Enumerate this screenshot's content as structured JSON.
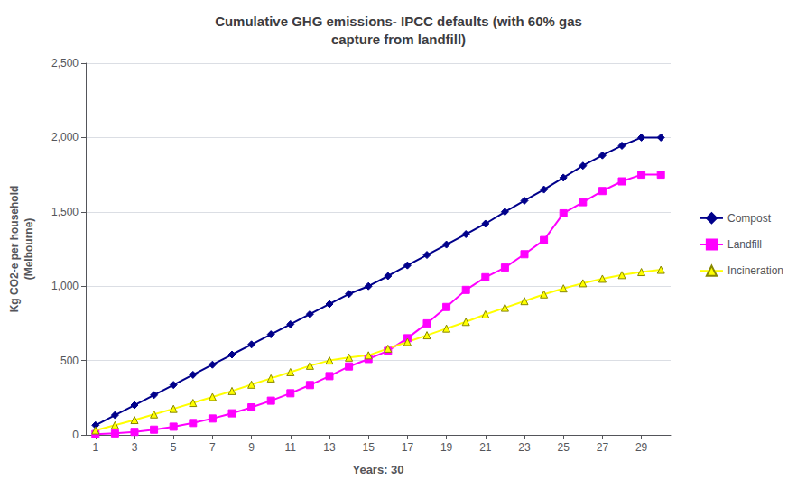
{
  "chart_data": {
    "type": "line",
    "title": "Cumulative GHG emissions- IPCC defaults (with 60% gas\ncapture from landfill)",
    "xlabel": "Years: 30",
    "ylabel": "Kg CO2-e per household\n(Melbourne)",
    "x": [
      1,
      2,
      3,
      4,
      5,
      6,
      7,
      8,
      9,
      10,
      11,
      12,
      13,
      14,
      15,
      16,
      17,
      18,
      19,
      20,
      21,
      22,
      23,
      24,
      25,
      26,
      27,
      28,
      29,
      30
    ],
    "xlim": [
      0.5,
      30.5
    ],
    "xticks": [
      1,
      3,
      5,
      7,
      9,
      11,
      13,
      15,
      17,
      19,
      21,
      23,
      25,
      27,
      29
    ],
    "ylim": [
      0,
      2500
    ],
    "yticks": [
      0,
      500,
      1000,
      1500,
      2000,
      2500
    ],
    "grid": true,
    "legend": "right",
    "series": [
      {
        "name": "Compost",
        "color": "#00008B",
        "marker": "diamond",
        "values": [
          65,
          133,
          200,
          268,
          336,
          404,
          472,
          540,
          608,
          676,
          744,
          812,
          880,
          948,
          1000,
          1068,
          1140,
          1210,
          1280,
          1350,
          1420,
          1500,
          1575,
          1650,
          1730,
          1810,
          1880,
          1945,
          2000,
          2000
        ]
      },
      {
        "name": "Landfill",
        "color": "#FF00FF",
        "marker": "square",
        "values": [
          5,
          10,
          20,
          35,
          55,
          80,
          110,
          145,
          185,
          230,
          280,
          335,
          395,
          460,
          510,
          565,
          650,
          750,
          860,
          975,
          1060,
          1125,
          1215,
          1310,
          1490,
          1565,
          1640,
          1705,
          1750,
          1750
        ]
      },
      {
        "name": "Incineration",
        "color": "#FFFF00",
        "marker": "triangle",
        "values": [
          30,
          65,
          100,
          138,
          175,
          215,
          255,
          295,
          338,
          380,
          422,
          465,
          500,
          520,
          535,
          580,
          625,
          670,
          715,
          760,
          810,
          855,
          900,
          945,
          985,
          1020,
          1050,
          1075,
          1095,
          1110
        ]
      }
    ]
  }
}
